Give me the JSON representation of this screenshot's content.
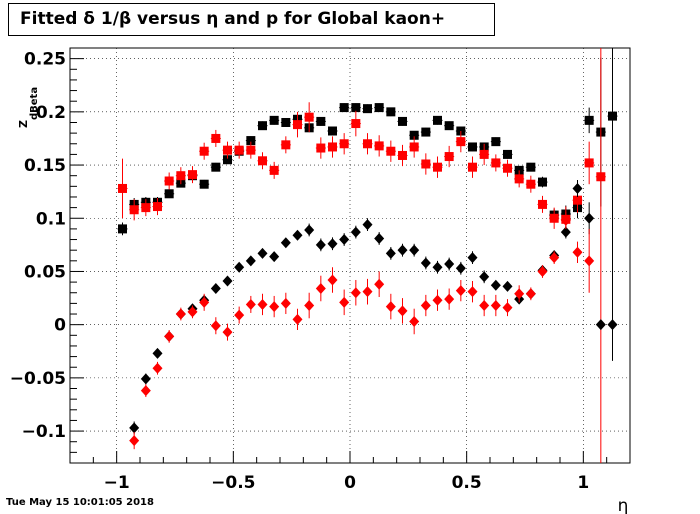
{
  "chart_data": {
    "type": "scatter",
    "title": "Fitted δ 1/β versus η and p for Global kaon+",
    "xlabel": "η",
    "ylabel": "Z_{dBeta}",
    "xlim": [
      -1.2,
      1.2
    ],
    "ylim": [
      -0.13,
      0.26
    ],
    "grid": true,
    "x_ticks": [
      "−1",
      "−0.5",
      "0",
      "0.5",
      "1"
    ],
    "y_ticks": [
      "−0.1",
      "−0.05",
      "0",
      "0.05",
      "0.1",
      "0.15",
      "0.2",
      "0.25"
    ],
    "timestamp": "Tue May 15 10:01:05 2018",
    "series": [
      {
        "marker": "square",
        "color": "#000000",
        "x": [
          -0.975,
          -0.925,
          -0.875,
          -0.825,
          -0.775,
          -0.725,
          -0.675,
          -0.625,
          -0.575,
          -0.525,
          -0.475,
          -0.425,
          -0.375,
          -0.325,
          -0.275,
          -0.225,
          -0.175,
          -0.125,
          -0.075,
          -0.025,
          0.025,
          0.075,
          0.125,
          0.175,
          0.225,
          0.275,
          0.325,
          0.375,
          0.425,
          0.475,
          0.525,
          0.575,
          0.625,
          0.675,
          0.725,
          0.775,
          0.825,
          0.875,
          0.925,
          0.975,
          1.025,
          1.075,
          1.125
        ],
        "y": [
          0.09,
          0.113,
          0.115,
          0.115,
          0.123,
          0.133,
          0.14,
          0.132,
          0.148,
          0.155,
          0.163,
          0.173,
          0.187,
          0.192,
          0.19,
          0.193,
          0.185,
          0.191,
          0.182,
          0.204,
          0.204,
          0.203,
          0.204,
          0.2,
          0.191,
          0.178,
          0.181,
          0.192,
          0.187,
          0.182,
          0.167,
          0.167,
          0.172,
          0.16,
          0.145,
          0.148,
          0.134,
          0.103,
          0.104,
          0.11,
          0.192,
          0.181,
          0.196
        ],
        "err": [
          0.006,
          0.006,
          0.005,
          0.005,
          0.004,
          0.004,
          0.004,
          0.004,
          0.004,
          0.004,
          0.004,
          0.004,
          0.004,
          0.004,
          0.004,
          0.004,
          0.004,
          0.004,
          0.004,
          0.004,
          0.004,
          0.004,
          0.004,
          0.004,
          0.004,
          0.004,
          0.004,
          0.004,
          0.004,
          0.004,
          0.004,
          0.004,
          0.004,
          0.004,
          0.004,
          0.004,
          0.005,
          0.006,
          0.008,
          0.01,
          0.012,
          0.07,
          0.23
        ]
      },
      {
        "marker": "square",
        "color": "#ff0000",
        "x": [
          -0.975,
          -0.925,
          -0.875,
          -0.825,
          -0.775,
          -0.725,
          -0.675,
          -0.625,
          -0.575,
          -0.525,
          -0.475,
          -0.425,
          -0.375,
          -0.325,
          -0.275,
          -0.225,
          -0.175,
          -0.125,
          -0.075,
          -0.025,
          0.025,
          0.075,
          0.125,
          0.175,
          0.225,
          0.275,
          0.325,
          0.375,
          0.425,
          0.475,
          0.525,
          0.575,
          0.625,
          0.675,
          0.725,
          0.775,
          0.825,
          0.875,
          0.925,
          0.975,
          1.025,
          1.075
        ],
        "y": [
          0.128,
          0.108,
          0.11,
          0.111,
          0.135,
          0.14,
          0.141,
          0.163,
          0.175,
          0.164,
          0.164,
          0.164,
          0.154,
          0.145,
          0.169,
          0.188,
          0.195,
          0.166,
          0.167,
          0.17,
          0.189,
          0.17,
          0.168,
          0.163,
          0.159,
          0.167,
          0.151,
          0.148,
          0.158,
          0.172,
          0.148,
          0.16,
          0.152,
          0.147,
          0.137,
          0.132,
          0.113,
          0.1,
          0.099,
          0.117,
          0.152,
          0.139
        ],
        "err": [
          0.028,
          0.01,
          0.008,
          0.008,
          0.008,
          0.008,
          0.008,
          0.008,
          0.008,
          0.008,
          0.008,
          0.008,
          0.008,
          0.008,
          0.008,
          0.012,
          0.014,
          0.01,
          0.01,
          0.01,
          0.012,
          0.01,
          0.01,
          0.01,
          0.01,
          0.01,
          0.01,
          0.01,
          0.01,
          0.01,
          0.01,
          0.01,
          0.008,
          0.008,
          0.008,
          0.008,
          0.008,
          0.01,
          0.012,
          0.012,
          0.02,
          0.3
        ]
      },
      {
        "marker": "diamond",
        "color": "#000000",
        "x": [
          -0.925,
          -0.875,
          -0.825,
          -0.775,
          -0.725,
          -0.675,
          -0.625,
          -0.575,
          -0.525,
          -0.475,
          -0.425,
          -0.375,
          -0.325,
          -0.275,
          -0.225,
          -0.175,
          -0.125,
          -0.075,
          -0.025,
          0.025,
          0.075,
          0.125,
          0.175,
          0.225,
          0.275,
          0.325,
          0.375,
          0.425,
          0.475,
          0.525,
          0.575,
          0.625,
          0.675,
          0.725,
          0.775,
          0.825,
          0.875,
          0.925,
          0.975,
          1.025,
          1.075,
          1.125
        ],
        "y": [
          -0.097,
          -0.051,
          -0.027,
          -0.011,
          0.01,
          0.015,
          0.023,
          0.034,
          0.041,
          0.054,
          0.06,
          0.067,
          0.064,
          0.077,
          0.084,
          0.089,
          0.075,
          0.076,
          0.08,
          0.087,
          0.094,
          0.081,
          0.067,
          0.07,
          0.07,
          0.058,
          0.054,
          0.057,
          0.053,
          0.063,
          0.045,
          0.037,
          0.036,
          0.024,
          0.029,
          0.051,
          0.065,
          0.087,
          0.128,
          0.1,
          0.0,
          0.0
        ],
        "err": [
          0.006,
          0.005,
          0.004,
          0.004,
          0.004,
          0.004,
          0.004,
          0.004,
          0.004,
          0.004,
          0.004,
          0.004,
          0.004,
          0.004,
          0.004,
          0.006,
          0.006,
          0.006,
          0.006,
          0.006,
          0.006,
          0.006,
          0.006,
          0.006,
          0.006,
          0.006,
          0.006,
          0.006,
          0.006,
          0.006,
          0.006,
          0.004,
          0.004,
          0.004,
          0.004,
          0.004,
          0.004,
          0.006,
          0.008,
          0.015,
          0.0,
          0.0
        ]
      },
      {
        "marker": "diamond",
        "color": "#ff0000",
        "x": [
          -0.925,
          -0.875,
          -0.825,
          -0.775,
          -0.725,
          -0.675,
          -0.625,
          -0.575,
          -0.525,
          -0.475,
          -0.425,
          -0.375,
          -0.325,
          -0.275,
          -0.225,
          -0.175,
          -0.125,
          -0.075,
          -0.025,
          0.025,
          0.075,
          0.125,
          0.175,
          0.225,
          0.275,
          0.325,
          0.375,
          0.425,
          0.475,
          0.525,
          0.575,
          0.625,
          0.675,
          0.725,
          0.775,
          0.825,
          0.875,
          0.925,
          0.975,
          1.025
        ],
        "y": [
          -0.109,
          -0.062,
          -0.041,
          -0.011,
          0.01,
          0.012,
          0.021,
          -0.001,
          -0.007,
          0.009,
          0.019,
          0.019,
          0.017,
          0.02,
          0.005,
          0.018,
          0.034,
          0.042,
          0.021,
          0.03,
          0.031,
          0.038,
          0.017,
          0.013,
          0.003,
          0.018,
          0.023,
          0.024,
          0.032,
          0.031,
          0.018,
          0.018,
          0.016,
          0.029,
          0.029,
          0.05,
          0.063,
          0.098,
          0.068,
          0.06
        ],
        "err": [
          0.008,
          0.006,
          0.006,
          0.006,
          0.006,
          0.006,
          0.008,
          0.008,
          0.008,
          0.008,
          0.008,
          0.01,
          0.01,
          0.01,
          0.01,
          0.012,
          0.012,
          0.012,
          0.012,
          0.012,
          0.012,
          0.012,
          0.012,
          0.012,
          0.012,
          0.01,
          0.01,
          0.01,
          0.01,
          0.01,
          0.01,
          0.01,
          0.008,
          0.008,
          0.006,
          0.006,
          0.006,
          0.008,
          0.01,
          0.03
        ]
      }
    ]
  }
}
